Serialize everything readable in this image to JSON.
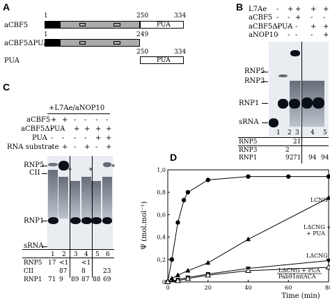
{
  "panels": {
    "a": "A",
    "b": "B",
    "c": "C",
    "d": "D"
  },
  "panel_a": {
    "rows": [
      {
        "name": "aCBF5",
        "n_start": "1",
        "n_mid": "250",
        "n_end": "334",
        "domain": "PUA"
      },
      {
        "name": "aCBF5ΔPUA",
        "n_start": "1",
        "n_mid": "249"
      },
      {
        "name": "PUA",
        "n_mid": "250",
        "n_end": "334",
        "domain": "PUA"
      }
    ]
  },
  "panel_b": {
    "conditions": [
      {
        "label": "L7Ae",
        "signs": [
          "-",
          "+",
          "+",
          "+",
          "+"
        ]
      },
      {
        "label": "aCBF5",
        "signs": [
          "-",
          "-",
          "+",
          "-",
          "-"
        ]
      },
      {
        "label": "aCBF5ΔPUA",
        "signs": [
          "-",
          "-",
          "-",
          "+",
          "+"
        ]
      },
      {
        "label": "aNOP10",
        "signs": [
          "-",
          "-",
          "-",
          "-",
          "+"
        ]
      }
    ],
    "bands": [
      "RNP5",
      "RNP3",
      "RNP1",
      "sRNA"
    ],
    "lanes": [
      "1",
      "2",
      "3",
      "4",
      "5"
    ],
    "table": [
      {
        "label": "RNP5",
        "values": [
          "",
          "",
          "21",
          "",
          ""
        ]
      },
      {
        "label": "RNP3",
        "values": [
          "",
          "2",
          "",
          "",
          ""
        ]
      },
      {
        "label": "RNP1",
        "values": [
          "",
          "92",
          "71",
          "94",
          "94"
        ]
      }
    ]
  },
  "panel_c": {
    "header": "+L7Ae/aNOP10",
    "conditions": [
      {
        "label": "aCBF5",
        "signs": [
          "+",
          "+",
          "-",
          "-",
          "-",
          "-"
        ]
      },
      {
        "label": "aCBF5ΔPUA",
        "signs": [
          "-",
          "-",
          "+",
          "+",
          "+",
          "+"
        ]
      },
      {
        "label": "PUA",
        "signs": [
          "-",
          "-",
          "-",
          "-",
          "+",
          "+"
        ]
      },
      {
        "label": "RNA substrate",
        "signs": [
          "-",
          "+",
          "-",
          "+",
          "-",
          "+"
        ]
      }
    ],
    "bands": [
      "RNP5",
      "CII",
      "RNP1",
      "sRNA"
    ],
    "star": "*",
    "lanes": [
      "1",
      "2",
      "3",
      "4",
      "5",
      "6"
    ],
    "table": [
      {
        "label": "RNP5",
        "values": [
          "17",
          "<1",
          "",
          "<1",
          "",
          ""
        ]
      },
      {
        "label": "CII",
        "values": [
          "",
          "87",
          "",
          "8",
          "",
          "23"
        ]
      },
      {
        "label": "RNP1",
        "values": [
          "71",
          "9",
          "89",
          "87",
          "88",
          "69"
        ]
      }
    ]
  },
  "panel_d": {
    "ylabel": "Ψ (mol.mol⁻¹)",
    "xlabel": "Time (min)",
    "chart_data": {
      "type": "line",
      "xlim": [
        0,
        80
      ],
      "ylim": [
        0,
        1.0
      ],
      "xticks": [
        "0",
        "20",
        "40",
        "60",
        "80"
      ],
      "yticks": [
        "0",
        "0,2",
        "0,4",
        "0,6",
        "0,8",
        "1,0"
      ],
      "series": [
        {
          "name": "LCNG",
          "marker": "filled-circle",
          "x": [
            0,
            2,
            5,
            8,
            10,
            20,
            40,
            60,
            80
          ],
          "y": [
            0,
            0.2,
            0.53,
            0.73,
            0.8,
            0.91,
            0.94,
            0.94,
            0.94
          ]
        },
        {
          "name": "LΔCNG + PUA",
          "marker": "filled-triangle-up",
          "x": [
            0,
            2,
            5,
            10,
            20,
            40,
            80
          ],
          "y": [
            0,
            0.03,
            0.06,
            0.1,
            0.17,
            0.38,
            0.75
          ]
        },
        {
          "name": "LΔCNG",
          "marker": "filled-triangle-down",
          "x": [
            0,
            5,
            10,
            20,
            40,
            80
          ],
          "y": [
            0,
            0.02,
            0.04,
            0.07,
            0.12,
            0.19
          ]
        },
        {
          "name": "LΔCNG + PUA Pab91mtACA",
          "marker": "open-triangle",
          "x": [
            0,
            5,
            10,
            20,
            40,
            80
          ],
          "y": [
            0,
            0.01,
            0.03,
            0.06,
            0.1,
            0.13
          ]
        }
      ]
    }
  }
}
